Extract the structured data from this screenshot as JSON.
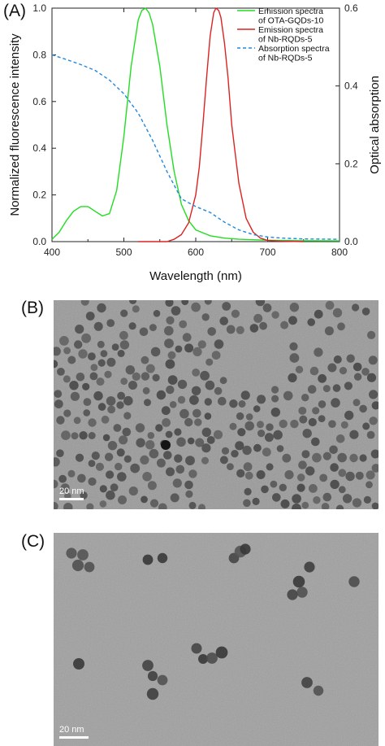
{
  "panels": {
    "a_label": "(A)",
    "b_label": "(B)",
    "c_label": "(C)"
  },
  "chart_data": {
    "type": "line",
    "xlabel": "Wavelength (nm)",
    "ylabel": "Normalized fluorescence intensity",
    "y2label": "Optical absorption",
    "xlim": [
      400,
      800
    ],
    "ylim": [
      0,
      1.0
    ],
    "y2lim": [
      0,
      0.6
    ],
    "xticks": [
      400,
      500,
      600,
      700,
      800
    ],
    "yticks": [
      "0.0",
      "0.2",
      "0.4",
      "0.6",
      "0.8",
      "1.0"
    ],
    "y2ticks": [
      "0.0",
      "0.2",
      "0.4",
      "0.6"
    ],
    "grid": false,
    "legend_position": "top-right",
    "series": [
      {
        "name": "Emission spectra of OTA-GQDs-10",
        "legend_lines": [
          "Emission spectra",
          "of OTA-GQDs-10"
        ],
        "axis": "left",
        "color": "#22dd22",
        "dash": "solid",
        "x": [
          400,
          410,
          420,
          430,
          440,
          450,
          460,
          470,
          480,
          490,
          500,
          510,
          520,
          525,
          530,
          535,
          540,
          550,
          560,
          570,
          580,
          590,
          600,
          620,
          640,
          660,
          680,
          700,
          750,
          800
        ],
        "y": [
          0.01,
          0.04,
          0.09,
          0.13,
          0.15,
          0.15,
          0.13,
          0.11,
          0.12,
          0.22,
          0.45,
          0.75,
          0.95,
          0.99,
          1.0,
          0.98,
          0.93,
          0.75,
          0.5,
          0.3,
          0.16,
          0.09,
          0.05,
          0.025,
          0.015,
          0.01,
          0.008,
          0.006,
          0.004,
          0.003
        ]
      },
      {
        "name": "Emission spectra of Nb-RQDs-5",
        "legend_lines": [
          "Emission spectra",
          "of Nb-RQDs-5"
        ],
        "axis": "left",
        "color": "#dd2222",
        "dash": "solid",
        "x": [
          520,
          540,
          560,
          570,
          580,
          590,
          600,
          605,
          610,
          615,
          620,
          625,
          628,
          632,
          635,
          640,
          645,
          650,
          660,
          670,
          680,
          690,
          700,
          720,
          750
        ],
        "y": [
          0.0,
          0.0,
          0.0,
          0.01,
          0.03,
          0.08,
          0.2,
          0.32,
          0.5,
          0.7,
          0.88,
          0.98,
          1.0,
          0.99,
          0.96,
          0.85,
          0.7,
          0.5,
          0.25,
          0.1,
          0.04,
          0.015,
          0.005,
          0.002,
          0.0
        ]
      },
      {
        "name": "Absorption spectra of Nb-RQDs-5",
        "legend_lines": [
          "Absorption spectra",
          "of Nb-RQDs-5"
        ],
        "axis": "right",
        "color": "#2288dd",
        "dash": "dashed",
        "x": [
          400,
          420,
          440,
          460,
          480,
          500,
          520,
          540,
          560,
          580,
          600,
          620,
          640,
          660,
          680,
          700,
          720,
          750,
          800
        ],
        "y": [
          0.48,
          0.468,
          0.455,
          0.44,
          0.415,
          0.38,
          0.33,
          0.26,
          0.18,
          0.11,
          0.09,
          0.075,
          0.05,
          0.03,
          0.018,
          0.012,
          0.009,
          0.007,
          0.006
        ]
      }
    ]
  },
  "tem_b": {
    "scale_label": "20 nm"
  },
  "tem_c": {
    "scale_label": "20 nm"
  }
}
